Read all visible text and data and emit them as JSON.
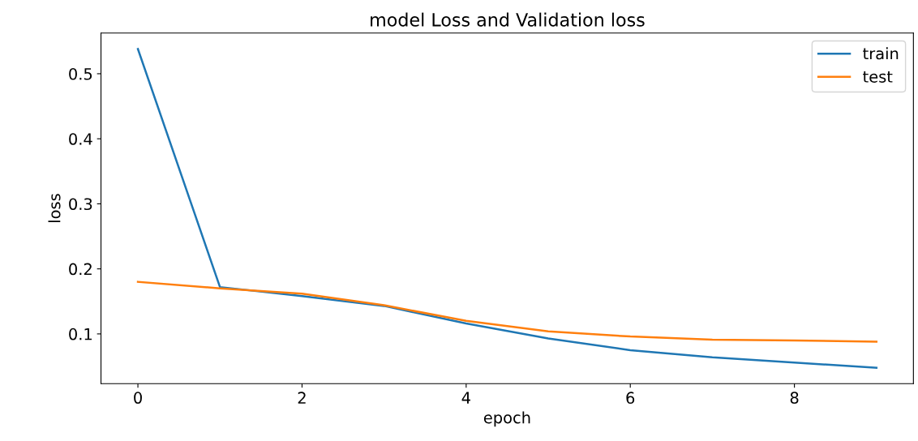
{
  "chart_data": {
    "type": "line",
    "title": "model Loss and Validation loss",
    "xlabel": "epoch",
    "ylabel": "loss",
    "x": [
      0,
      1,
      2,
      3,
      4,
      5,
      6,
      7,
      8,
      9
    ],
    "series": [
      {
        "name": "train",
        "color": "#1f77b4",
        "values": [
          0.538,
          0.172,
          0.158,
          0.143,
          0.116,
          0.093,
          0.075,
          0.064,
          0.056,
          0.048
        ]
      },
      {
        "name": "test",
        "color": "#ff7f0e",
        "values": [
          0.18,
          0.17,
          0.162,
          0.144,
          0.12,
          0.104,
          0.096,
          0.091,
          0.09,
          0.088
        ]
      }
    ],
    "xlim": [
      -0.45,
      9.45
    ],
    "xticks": [
      0,
      2,
      4,
      6,
      8
    ],
    "ylim": [
      0.0235,
      0.5625
    ],
    "yticks": [
      0.1,
      0.2,
      0.3,
      0.4,
      0.5
    ],
    "legend": "top right",
    "grid": false,
    "marker": "none",
    "line_style": "solid"
  }
}
